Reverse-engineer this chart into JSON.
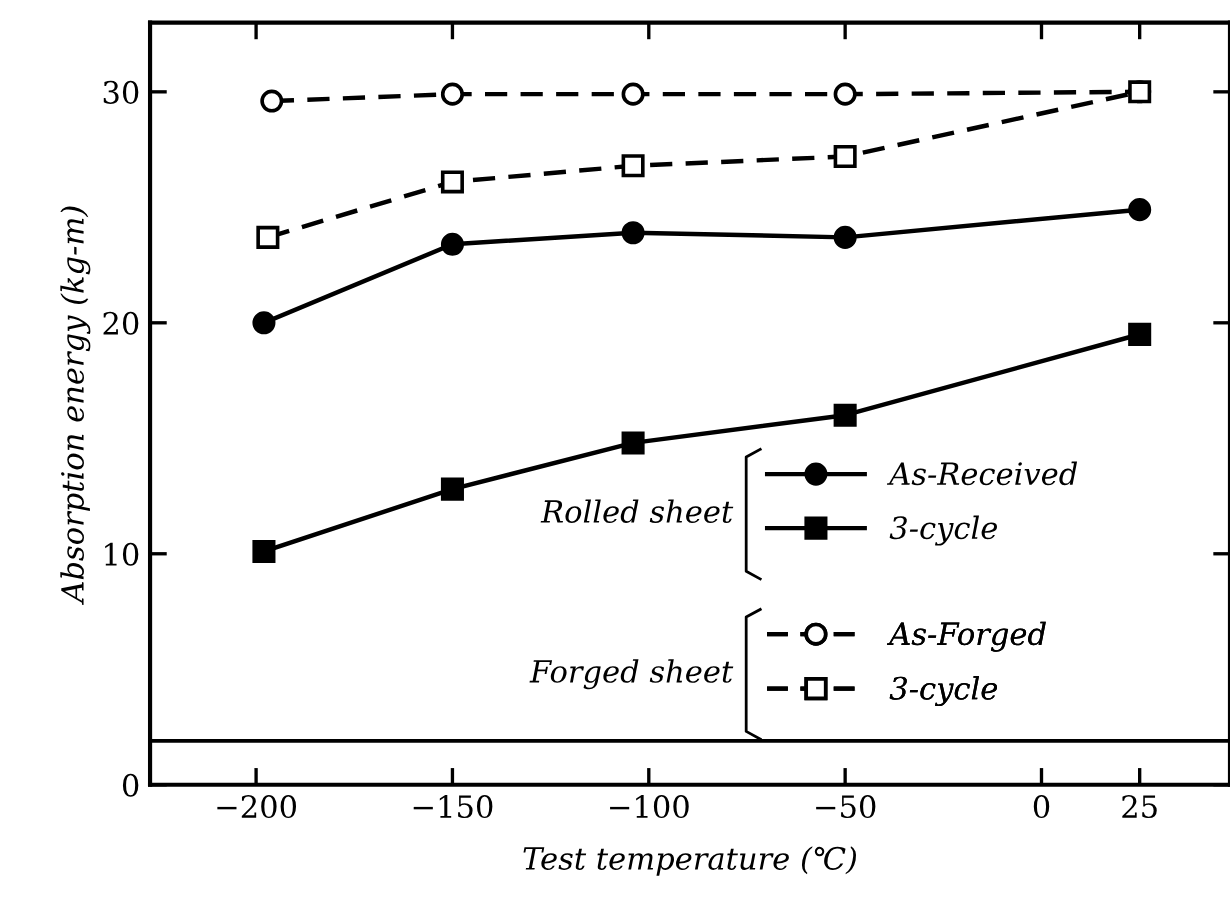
{
  "chart_data": {
    "type": "line",
    "xlabel": "Test temperature (℃)",
    "ylabel": "Absorption energy (kg-m)",
    "xlim": [
      -227,
      48
    ],
    "ylim": [
      0,
      33
    ],
    "xticks": [
      -200,
      -150,
      -100,
      -50,
      0,
      25
    ],
    "yticks": [
      0,
      10,
      20,
      30
    ],
    "grid": false,
    "legend": "bottom right",
    "annotations": [
      "Rolled sheet",
      "Forged sheet"
    ],
    "ref_lines": [
      {
        "axis": "y",
        "value": 1.9,
        "label": null,
        "color": "#000000",
        "line_style": "solid"
      }
    ],
    "series": [
      {
        "name": "As-Received",
        "color": "#000000",
        "marker": "circle",
        "line_style": "solid",
        "x": [
          -198,
          -150,
          -104,
          -50,
          25
        ],
        "values": [
          20.0,
          23.4,
          23.9,
          23.7,
          24.9
        ]
      },
      {
        "name": "3-cycle",
        "color": "#000000",
        "marker": "square",
        "line_style": "solid",
        "x": [
          -198,
          -150,
          -104,
          -50,
          25
        ],
        "values": [
          10.1,
          12.8,
          14.8,
          16.0,
          19.5
        ]
      },
      {
        "name": "As-Forged",
        "color": "#000000",
        "marker": "circle",
        "line_style": "dashed",
        "x": [
          -196,
          -150,
          -104,
          -50,
          25
        ],
        "values": [
          29.6,
          29.9,
          29.9,
          29.9,
          30.0
        ]
      },
      {
        "name": "3-cycle",
        "color": "#000000",
        "marker": "square",
        "line_style": "dashed",
        "x": [
          -197,
          -150,
          -104,
          -50,
          25
        ],
        "values": [
          23.7,
          26.1,
          26.8,
          27.2,
          30.0
        ]
      }
    ]
  }
}
